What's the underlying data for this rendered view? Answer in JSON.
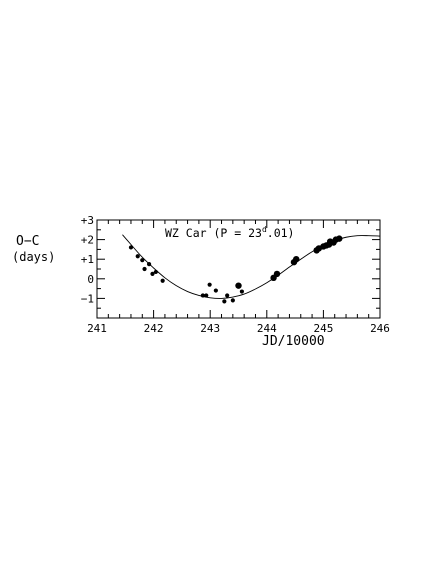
{
  "chart_data": {
    "type": "scatter",
    "title": "",
    "annotation": {
      "prefix": "WZ Car (P = 23",
      "superscript": "d",
      "suffix": ".01)"
    },
    "xlabel": "JD/10000",
    "ylabel": "O−C",
    "ylabel_unit": "(days)",
    "xlim": [
      241,
      246
    ],
    "ylim": [
      -2,
      3
    ],
    "xticks": [
      {
        "value": 241,
        "label": "241"
      },
      {
        "value": 242,
        "label": "242"
      },
      {
        "value": 243,
        "label": "243"
      },
      {
        "value": 244,
        "label": "244"
      },
      {
        "value": 245,
        "label": "245"
      },
      {
        "value": 246,
        "label": "246"
      }
    ],
    "yticks": [
      {
        "value": 3,
        "label": "+3"
      },
      {
        "value": 2,
        "label": "+2"
      },
      {
        "value": 1,
        "label": "+1"
      },
      {
        "value": 0,
        "label": "0"
      },
      {
        "value": -1,
        "label": "−1"
      }
    ],
    "grid": false,
    "legend": "none",
    "colors": {
      "marks": "#000000",
      "background": "#ffffff"
    },
    "points": [
      {
        "x": 241.6,
        "y": 1.6,
        "size": "small"
      },
      {
        "x": 241.72,
        "y": 1.15,
        "size": "small"
      },
      {
        "x": 241.8,
        "y": 0.95,
        "size": "small"
      },
      {
        "x": 241.84,
        "y": 0.5,
        "size": "small"
      },
      {
        "x": 241.92,
        "y": 0.75,
        "size": "small"
      },
      {
        "x": 241.98,
        "y": 0.25,
        "size": "small"
      },
      {
        "x": 242.04,
        "y": 0.35,
        "size": "small"
      },
      {
        "x": 242.16,
        "y": -0.1,
        "size": "small"
      },
      {
        "x": 242.87,
        "y": -0.85,
        "size": "small"
      },
      {
        "x": 242.93,
        "y": -0.85,
        "size": "small"
      },
      {
        "x": 242.99,
        "y": -0.3,
        "size": "small"
      },
      {
        "x": 243.1,
        "y": -0.6,
        "size": "small"
      },
      {
        "x": 243.25,
        "y": -1.15,
        "size": "small"
      },
      {
        "x": 243.3,
        "y": -0.85,
        "size": "small"
      },
      {
        "x": 243.4,
        "y": -1.1,
        "size": "small"
      },
      {
        "x": 243.5,
        "y": -0.35,
        "size": "large"
      },
      {
        "x": 243.56,
        "y": -0.65,
        "size": "small"
      },
      {
        "x": 244.12,
        "y": 0.05,
        "size": "large"
      },
      {
        "x": 244.18,
        "y": 0.25,
        "size": "large"
      },
      {
        "x": 244.48,
        "y": 0.85,
        "size": "large"
      },
      {
        "x": 244.52,
        "y": 1.0,
        "size": "large"
      },
      {
        "x": 244.88,
        "y": 1.45,
        "size": "large"
      },
      {
        "x": 244.92,
        "y": 1.55,
        "size": "large"
      },
      {
        "x": 245.0,
        "y": 1.65,
        "size": "large"
      },
      {
        "x": 245.05,
        "y": 1.7,
        "size": "large"
      },
      {
        "x": 245.1,
        "y": 1.75,
        "size": "large"
      },
      {
        "x": 245.12,
        "y": 1.9,
        "size": "large"
      },
      {
        "x": 245.18,
        "y": 1.85,
        "size": "large"
      },
      {
        "x": 245.22,
        "y": 2.0,
        "size": "large"
      },
      {
        "x": 245.28,
        "y": 2.05,
        "size": "large"
      }
    ],
    "fit_curve": [
      [
        241.45,
        2.25
      ],
      [
        241.6,
        1.75
      ],
      [
        241.8,
        1.1
      ],
      [
        242.0,
        0.55
      ],
      [
        242.2,
        0.05
      ],
      [
        242.4,
        -0.35
      ],
      [
        242.6,
        -0.65
      ],
      [
        242.8,
        -0.85
      ],
      [
        243.0,
        -0.97
      ],
      [
        243.2,
        -1.0
      ],
      [
        243.4,
        -0.93
      ],
      [
        243.6,
        -0.78
      ],
      [
        243.8,
        -0.52
      ],
      [
        244.0,
        -0.2
      ],
      [
        244.2,
        0.18
      ],
      [
        244.4,
        0.6
      ],
      [
        244.6,
        1.0
      ],
      [
        244.8,
        1.38
      ],
      [
        245.0,
        1.7
      ],
      [
        245.2,
        1.95
      ],
      [
        245.4,
        2.12
      ],
      [
        245.6,
        2.2
      ],
      [
        245.8,
        2.2
      ],
      [
        246.0,
        2.18
      ]
    ]
  }
}
